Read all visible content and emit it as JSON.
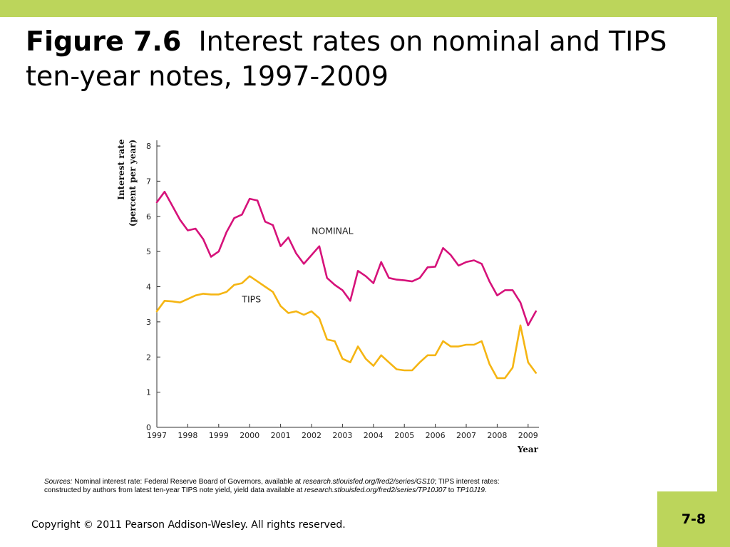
{
  "slide": {
    "title_fig": "Figure 7.6",
    "title_rest": "Interest rates on nominal and TIPS ten-year notes, 1997-2009",
    "page_number": "7-8",
    "copyright": "Copyright © 2011 Pearson Addison-Wesley. All rights reserved."
  },
  "sources": {
    "label": "Sources:",
    "text1": " Nominal interest rate: Federal Reserve Board of Governors, available at ",
    "link1": "research.stlouisfed.org/fred2/series/GS10",
    "text2": "; TIPS interest rates: constructed by authors from latest ten-year TIPS note yield, yield data available at ",
    "link2": "research.stlouisfed.org/fred2/series/TP10J07",
    "text3": " to ",
    "link3": "TP10J19",
    "text4": "."
  },
  "colors": {
    "accent_bar": "#bcd55b",
    "nominal": "#d6127a",
    "tips": "#f5b513",
    "axis": "#333333"
  },
  "chart_data": {
    "type": "line",
    "title": "Interest rates on nominal and TIPS ten-year notes, 1997-2009",
    "ylabel_line1": "Interest rate",
    "ylabel_line2": "(percent per year)",
    "xlabel": "Year",
    "ylim": [
      0,
      8
    ],
    "xlim": [
      1997,
      2009.35
    ],
    "yticks": [
      0,
      1,
      2,
      3,
      4,
      5,
      6,
      7,
      8
    ],
    "xticks": [
      1997,
      1998,
      1999,
      2000,
      2001,
      2002,
      2003,
      2004,
      2005,
      2006,
      2007,
      2008,
      2009
    ],
    "grid": false,
    "series": [
      {
        "name": "NOMINAL",
        "color": "#d6127a",
        "x": [
          1997.0,
          1997.25,
          1997.5,
          1997.75,
          1998.0,
          1998.25,
          1998.5,
          1998.75,
          1999.0,
          1999.25,
          1999.5,
          1999.75,
          2000.0,
          2000.25,
          2000.5,
          2000.75,
          2001.0,
          2001.25,
          2001.5,
          2001.75,
          2002.0,
          2002.25,
          2002.5,
          2002.75,
          2003.0,
          2003.25,
          2003.5,
          2003.75,
          2004.0,
          2004.25,
          2004.5,
          2004.75,
          2005.0,
          2005.25,
          2005.5,
          2005.75,
          2006.0,
          2006.25,
          2006.5,
          2006.75,
          2007.0,
          2007.25,
          2007.5,
          2007.75,
          2008.0,
          2008.25,
          2008.5,
          2008.75,
          2009.0,
          2009.25
        ],
        "values": [
          6.4,
          6.7,
          6.3,
          5.9,
          5.6,
          5.65,
          5.35,
          4.85,
          5.0,
          5.55,
          5.95,
          6.05,
          6.5,
          6.45,
          5.85,
          5.75,
          5.15,
          5.4,
          4.95,
          4.65,
          4.9,
          5.15,
          4.25,
          4.05,
          3.9,
          3.6,
          4.45,
          4.3,
          4.1,
          4.7,
          4.25,
          4.2,
          4.18,
          4.15,
          4.25,
          4.55,
          4.57,
          5.1,
          4.9,
          4.6,
          4.7,
          4.75,
          4.65,
          4.15,
          3.75,
          3.9,
          3.9,
          3.55,
          2.9,
          3.3
        ]
      },
      {
        "name": "TIPS",
        "color": "#f5b513",
        "x": [
          1997.0,
          1997.25,
          1997.5,
          1997.75,
          1998.0,
          1998.25,
          1998.5,
          1998.75,
          1999.0,
          1999.25,
          1999.5,
          1999.75,
          2000.0,
          2000.25,
          2000.5,
          2000.75,
          2001.0,
          2001.25,
          2001.5,
          2001.75,
          2002.0,
          2002.25,
          2002.5,
          2002.75,
          2003.0,
          2003.25,
          2003.5,
          2003.75,
          2004.0,
          2004.25,
          2004.5,
          2004.75,
          2005.0,
          2005.25,
          2005.5,
          2005.75,
          2006.0,
          2006.25,
          2006.5,
          2006.75,
          2007.0,
          2007.25,
          2007.5,
          2007.75,
          2008.0,
          2008.25,
          2008.5,
          2008.75,
          2009.0,
          2009.25
        ],
        "values": [
          3.3,
          3.6,
          3.58,
          3.55,
          3.65,
          3.75,
          3.8,
          3.78,
          3.78,
          3.85,
          4.05,
          4.1,
          4.3,
          4.15,
          4.0,
          3.85,
          3.45,
          3.25,
          3.3,
          3.2,
          3.3,
          3.1,
          2.5,
          2.45,
          1.95,
          1.85,
          2.3,
          1.95,
          1.75,
          2.05,
          1.85,
          1.65,
          1.62,
          1.62,
          1.85,
          2.05,
          2.05,
          2.45,
          2.3,
          2.3,
          2.35,
          2.35,
          2.45,
          1.8,
          1.4,
          1.4,
          1.7,
          2.9,
          1.85,
          1.55
        ]
      }
    ],
    "labels": [
      {
        "text": "NOMINAL",
        "series": 0,
        "x": 2002.0,
        "y": 5.5
      },
      {
        "text": "TIPS",
        "series": 1,
        "x": 1999.75,
        "y": 3.55
      }
    ]
  }
}
